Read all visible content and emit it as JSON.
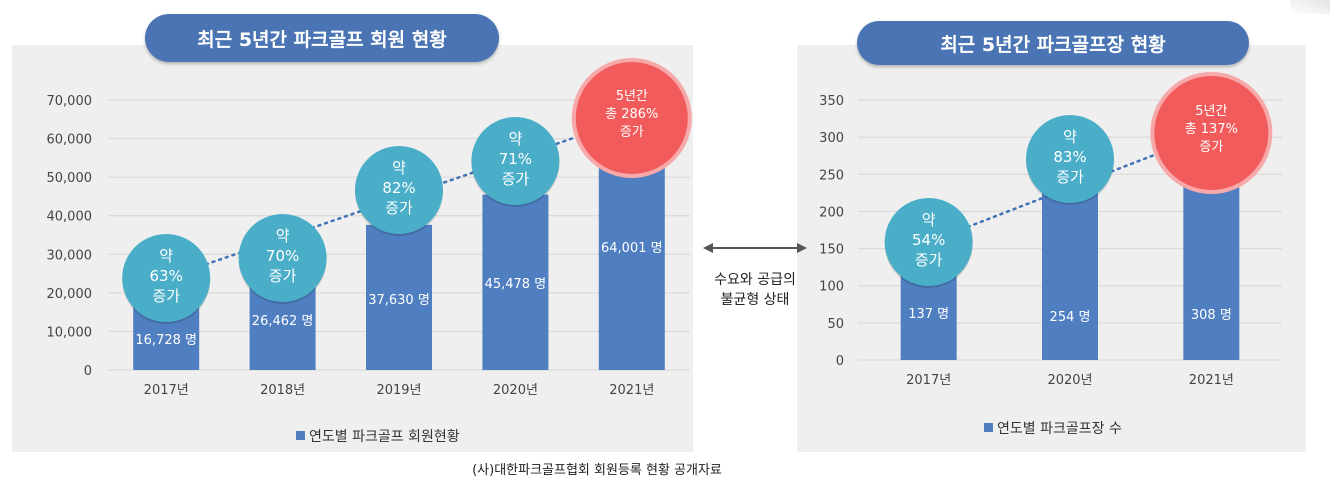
{
  "source_note": "(사)대한파크골프협회 회원등록 현황 공개자료",
  "center_annotation": {
    "line1": "수요와 공급의",
    "line2": "불균형 상태"
  },
  "colors": {
    "bar": "#4f7fc1",
    "bubble": "#4aaec8",
    "highlight_bubble": "#f25b5b",
    "highlight_ring": "#f7a8a8",
    "trend": "#3f73b5",
    "panel": "#efefef",
    "title_pill": "#4a74b3"
  },
  "chart_data": [
    {
      "type": "bar",
      "title": "최근 5년간 파크골프 회원 현황",
      "categories": [
        "2017년",
        "2018년",
        "2019년",
        "2020년",
        "2021년"
      ],
      "series": [
        {
          "name": "연도별 파크골프 회원현황",
          "values": [
            16728,
            26462,
            37630,
            45478,
            64001
          ]
        }
      ],
      "data_labels": [
        "16,728 명",
        "26,462 명",
        "37,630  명",
        "45,478 명",
        "64,001 명"
      ],
      "ylim": [
        0,
        70000
      ],
      "yticks": [
        0,
        10000,
        20000,
        30000,
        40000,
        50000,
        60000,
        70000
      ],
      "ytick_labels": [
        "0",
        "10,000",
        "20,000",
        "30,000",
        "40,000",
        "50,000",
        "60,000",
        "70,000"
      ],
      "grid": true,
      "legend": "bottom",
      "trendline": "dotted",
      "annotations": [
        {
          "category": "2017년",
          "lines": [
            "약",
            "63%",
            "증가"
          ],
          "highlight": false
        },
        {
          "category": "2018년",
          "lines": [
            "약",
            "70%",
            "증가"
          ],
          "highlight": false
        },
        {
          "category": "2019년",
          "lines": [
            "약",
            "82%",
            "증가"
          ],
          "highlight": false
        },
        {
          "category": "2020년",
          "lines": [
            "약",
            "71%",
            "증가"
          ],
          "highlight": false
        },
        {
          "category": "2021년",
          "lines": [
            "5년간",
            "총 286%",
            "증가"
          ],
          "highlight": true
        }
      ]
    },
    {
      "type": "bar",
      "title": "최근 5년간 파크골프장 현황",
      "categories": [
        "2017년",
        "2020년",
        "2021년"
      ],
      "series": [
        {
          "name": "연도별 파크골프장 수",
          "values": [
            137,
            254,
            308
          ]
        }
      ],
      "data_labels": [
        "137 명",
        "254 명",
        "308  명"
      ],
      "ylim": [
        0,
        350
      ],
      "yticks": [
        0,
        50,
        100,
        150,
        200,
        250,
        300,
        350
      ],
      "ytick_labels": [
        "0",
        "50",
        "100",
        "150",
        "200",
        "250",
        "300",
        "350"
      ],
      "grid": true,
      "legend": "bottom",
      "trendline": "dotted",
      "annotations": [
        {
          "category": "2017년",
          "lines": [
            "약",
            "54%",
            "증가"
          ],
          "highlight": false
        },
        {
          "category": "2020년",
          "lines": [
            "약",
            "83%",
            "증가"
          ],
          "highlight": false
        },
        {
          "category": "2021년",
          "lines": [
            "5년간",
            "총 137%",
            "증가"
          ],
          "highlight": true
        }
      ]
    }
  ]
}
